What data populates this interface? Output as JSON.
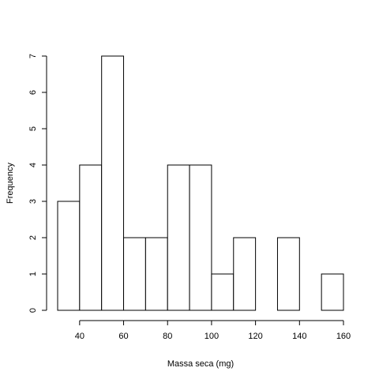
{
  "chart_data": {
    "type": "bar",
    "title": "",
    "xlabel": "Massa seca (mg)",
    "ylabel": "Frequency",
    "bins": [
      {
        "x0": 30,
        "x1": 40,
        "value": 3
      },
      {
        "x0": 40,
        "x1": 50,
        "value": 4
      },
      {
        "x0": 50,
        "x1": 60,
        "value": 7
      },
      {
        "x0": 60,
        "x1": 70,
        "value": 2
      },
      {
        "x0": 70,
        "x1": 80,
        "value": 2
      },
      {
        "x0": 80,
        "x1": 90,
        "value": 4
      },
      {
        "x0": 90,
        "x1": 100,
        "value": 4
      },
      {
        "x0": 100,
        "x1": 110,
        "value": 1
      },
      {
        "x0": 110,
        "x1": 120,
        "value": 2
      },
      {
        "x0": 120,
        "x1": 130,
        "value": 0
      },
      {
        "x0": 130,
        "x1": 140,
        "value": 2
      },
      {
        "x0": 140,
        "x1": 150,
        "value": 0
      },
      {
        "x0": 150,
        "x1": 160,
        "value": 1
      }
    ],
    "xticks": [
      "40",
      "60",
      "80",
      "100",
      "120",
      "140",
      "160"
    ],
    "yticks": [
      "0",
      "1",
      "2",
      "3",
      "4",
      "5",
      "6",
      "7"
    ],
    "xlim": [
      30,
      160
    ],
    "ylim": [
      0,
      7
    ],
    "grid": false,
    "bar_fill": "#ffffff",
    "bar_stroke": "#000000"
  }
}
